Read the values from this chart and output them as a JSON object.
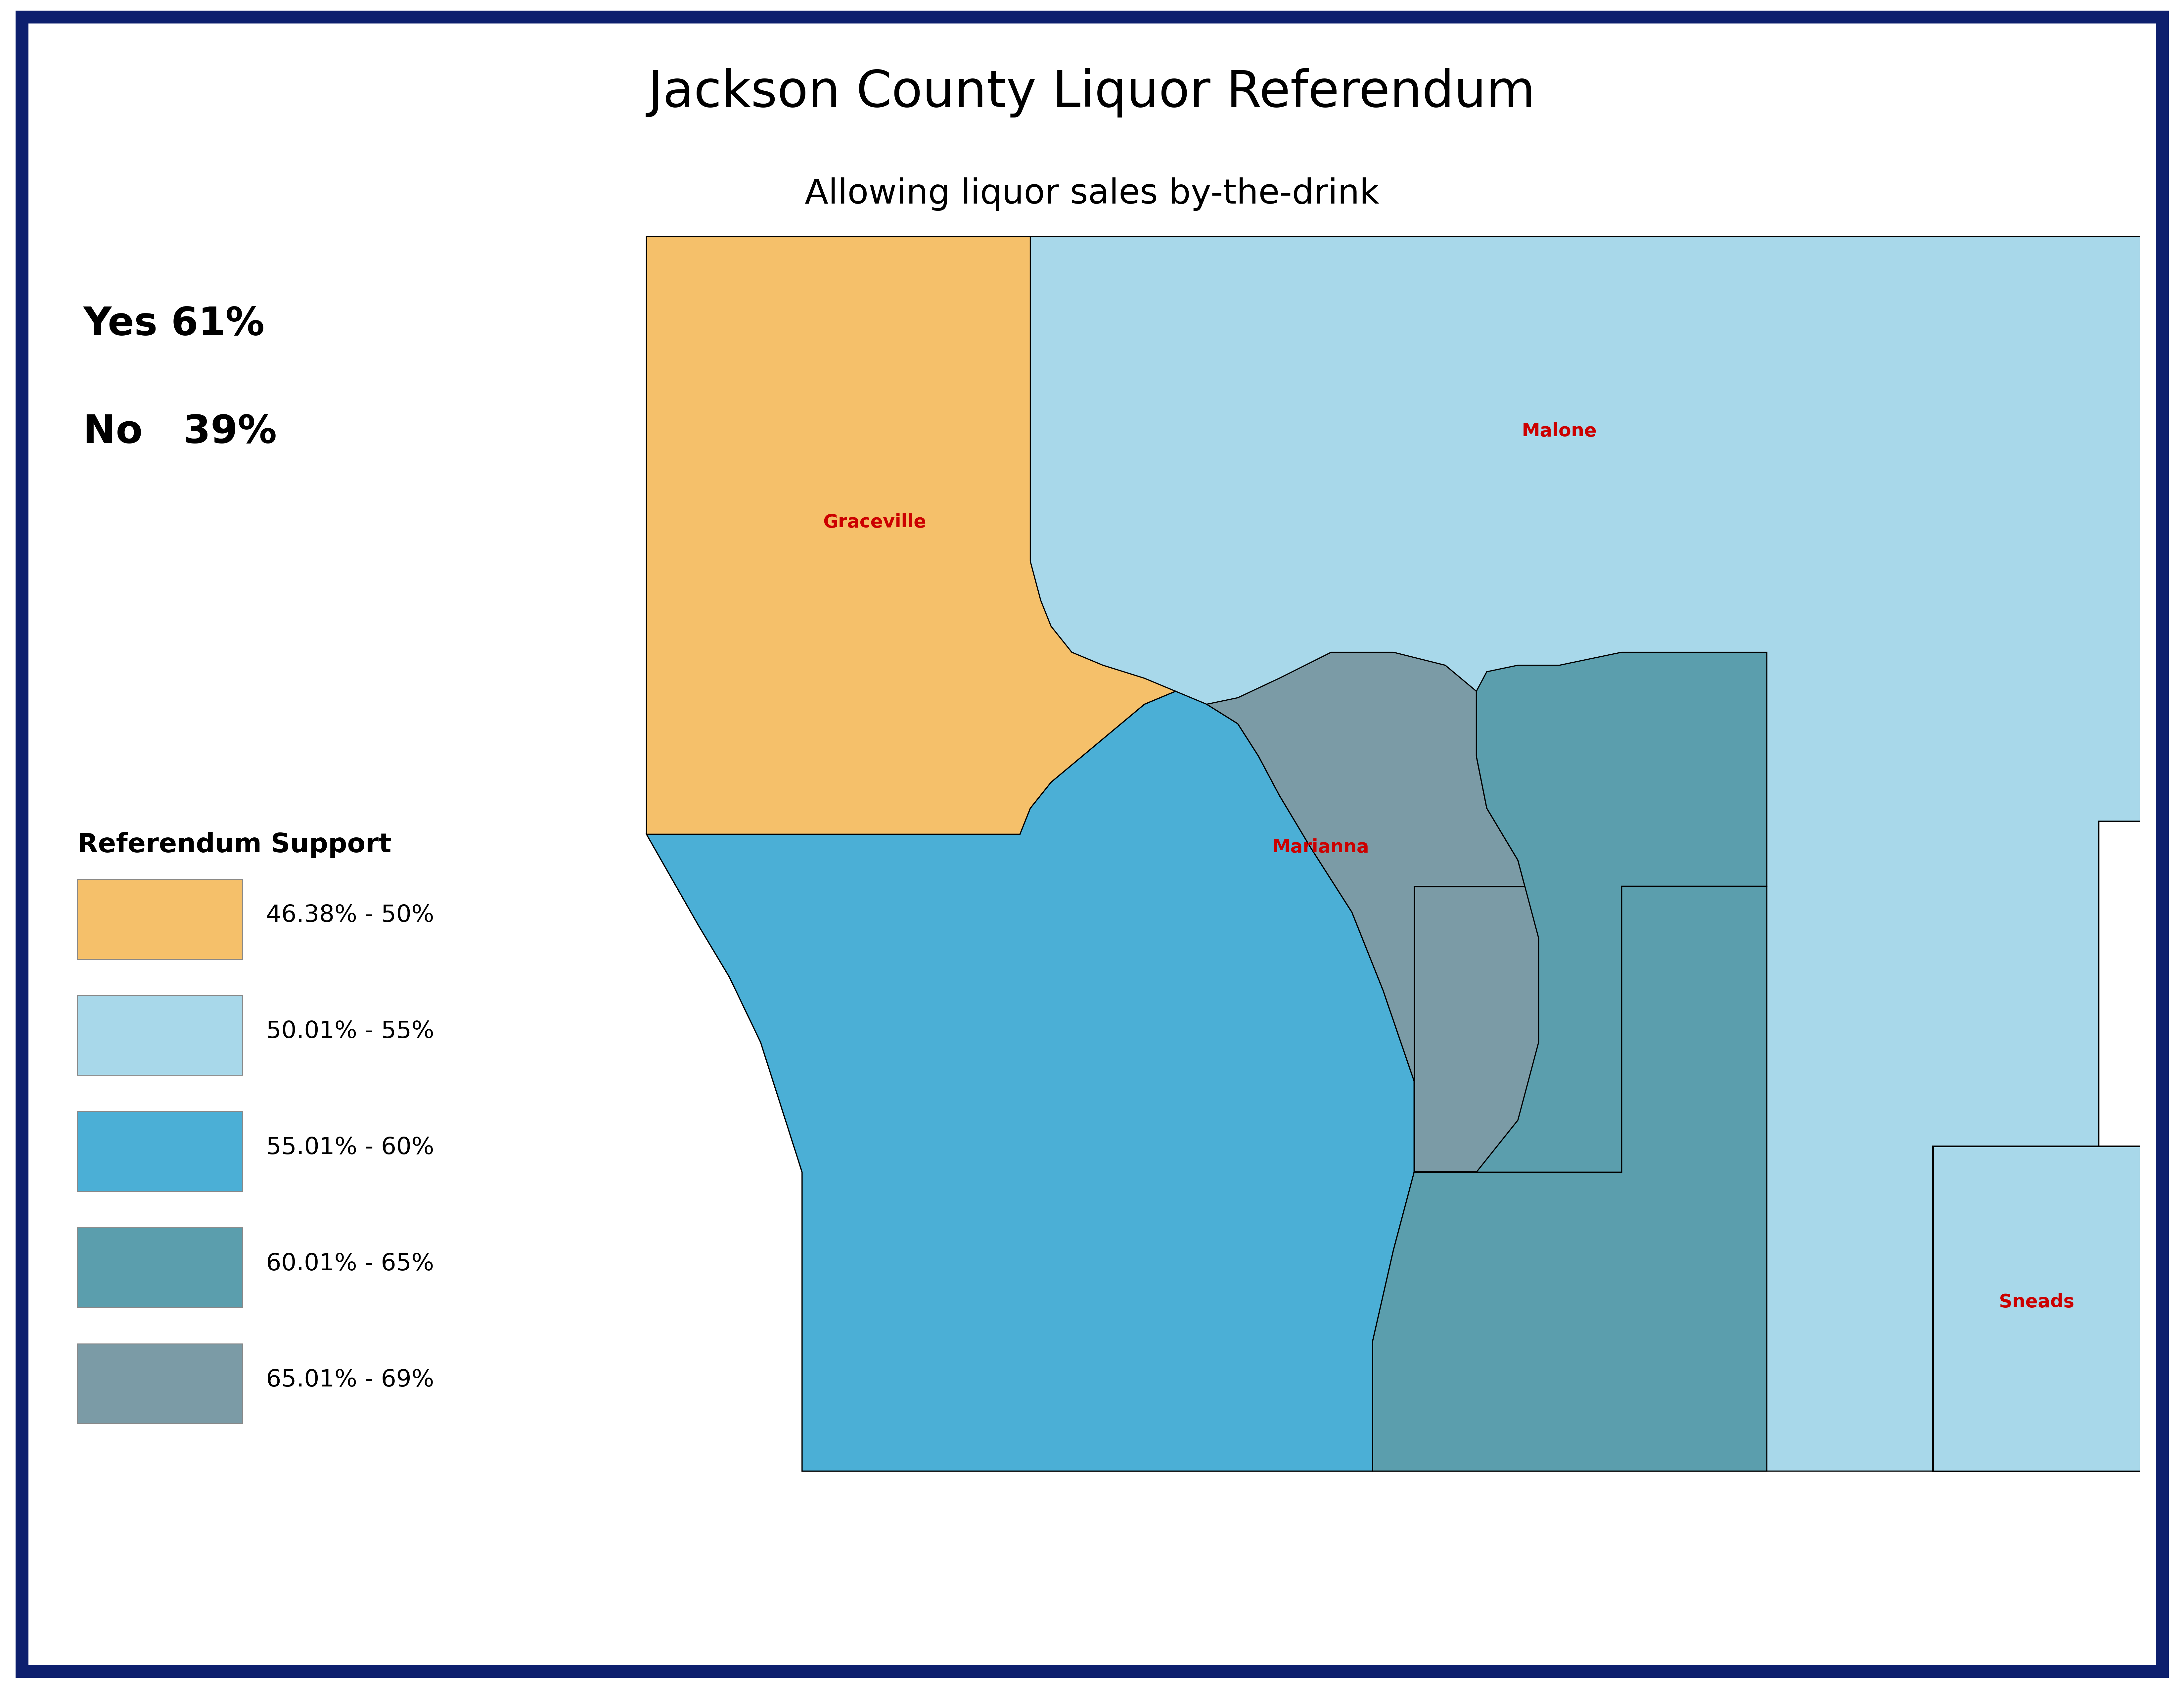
{
  "title": "Jackson County Liquor Referendum",
  "subtitle": "Allowing liquor sales by-the-drink",
  "yes_text": "Yes 61%",
  "no_text": "No   39%",
  "legend_title": "Referendum Support",
  "legend_entries": [
    {
      "label": "46.38% - 50%",
      "color": "#F5C06A"
    },
    {
      "label": "50.01% - 55%",
      "color": "#A8D8EA"
    },
    {
      "label": "55.01% - 60%",
      "color": "#4BAFD6"
    },
    {
      "label": "60.01% - 65%",
      "color": "#5B9EAD"
    },
    {
      "label": "65.01% - 69%",
      "color": "#7B9BA6"
    }
  ],
  "border_color": "#0D1F6E",
  "bg_color": "#FFFFFF",
  "title_fontsize": 110,
  "subtitle_fontsize": 75,
  "stats_fontsize": 85,
  "legend_title_fontsize": 58,
  "legend_label_fontsize": 52,
  "city_label_fontsize": 40,
  "city_labels": [
    {
      "name": "Graceville",
      "color": "#CC0000"
    },
    {
      "name": "Malone",
      "color": "#CC0000"
    },
    {
      "name": "Marianna",
      "color": "#CC0000"
    },
    {
      "name": "Sneads",
      "color": "#CC0000"
    }
  ]
}
